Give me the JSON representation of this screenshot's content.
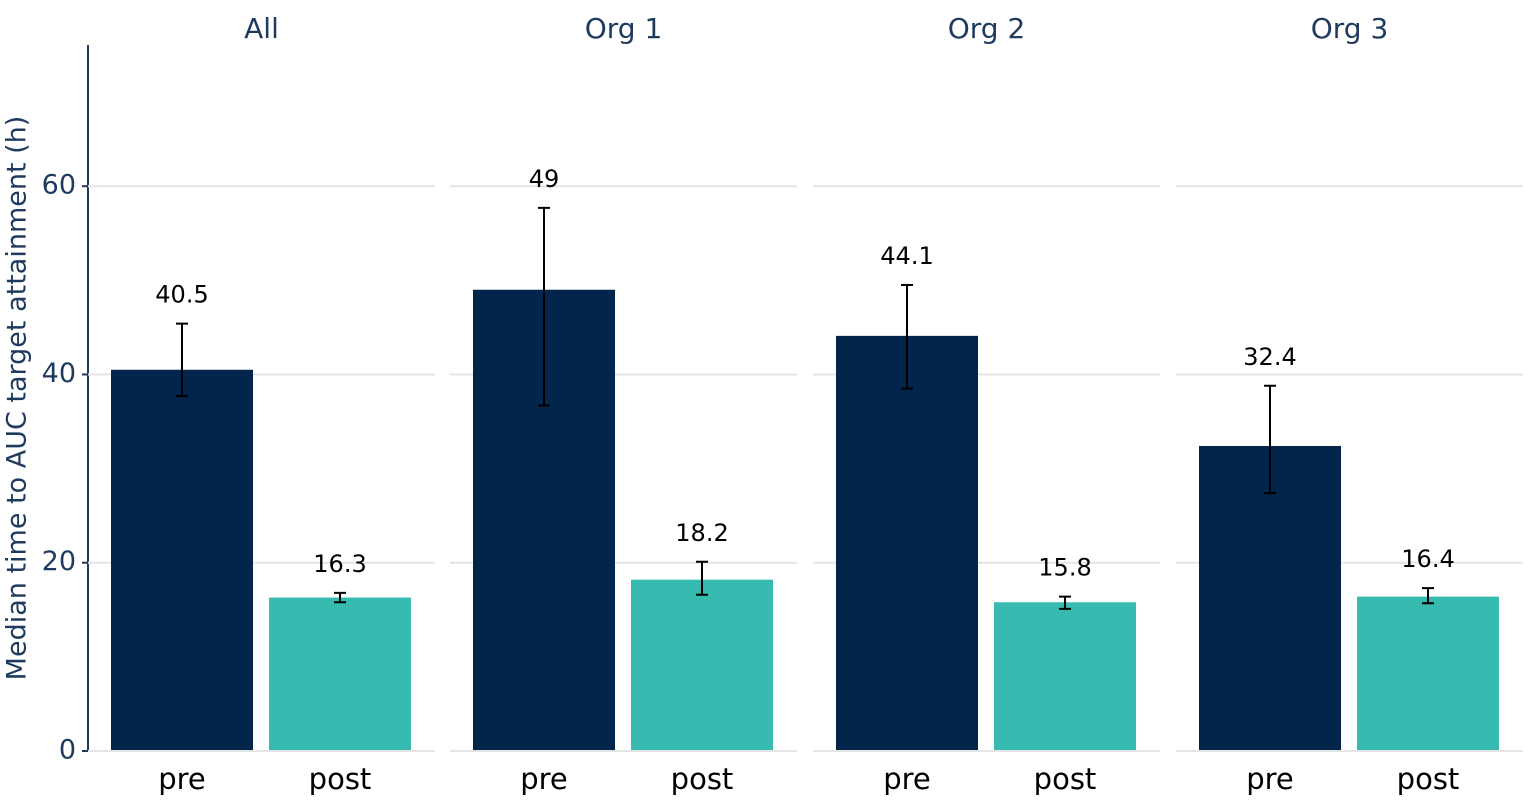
{
  "chart_data": [
    {
      "type": "bar",
      "title": "All",
      "ylabel": "Median time to AUC target attainment (h)",
      "categories": [
        "pre",
        "post"
      ],
      "values": [
        40.5,
        16.3
      ],
      "lower": [
        37.7,
        15.8
      ],
      "upper": [
        45.4,
        16.8
      ],
      "colors": [
        "#02264b",
        "#37bbb0"
      ],
      "ylim": [
        0,
        75
      ],
      "yticks": [
        0,
        20,
        40,
        60
      ],
      "grid": true
    },
    {
      "type": "bar",
      "title": "Org 1",
      "categories": [
        "pre",
        "post"
      ],
      "values": [
        49,
        18.2
      ],
      "lower": [
        36.7,
        16.6
      ],
      "upper": [
        57.7,
        20.1
      ],
      "colors": [
        "#02264b",
        "#37bbb0"
      ],
      "ylim": [
        0,
        75
      ],
      "yticks": [
        0,
        20,
        40,
        60
      ],
      "grid": true
    },
    {
      "type": "bar",
      "title": "Org 2",
      "categories": [
        "pre",
        "post"
      ],
      "values": [
        44.1,
        15.8
      ],
      "lower": [
        38.5,
        15.1
      ],
      "upper": [
        49.5,
        16.4
      ],
      "colors": [
        "#02264b",
        "#37bbb0"
      ],
      "ylim": [
        0,
        75
      ],
      "yticks": [
        0,
        20,
        40,
        60
      ],
      "grid": true
    },
    {
      "type": "bar",
      "title": "Org 3",
      "categories": [
        "pre",
        "post"
      ],
      "values": [
        32.4,
        16.4
      ],
      "lower": [
        27.4,
        15.7
      ],
      "upper": [
        38.8,
        17.3
      ],
      "colors": [
        "#02264b",
        "#37bbb0"
      ],
      "ylim": [
        0,
        75
      ],
      "yticks": [
        0,
        20,
        40,
        60
      ],
      "grid": true
    }
  ]
}
